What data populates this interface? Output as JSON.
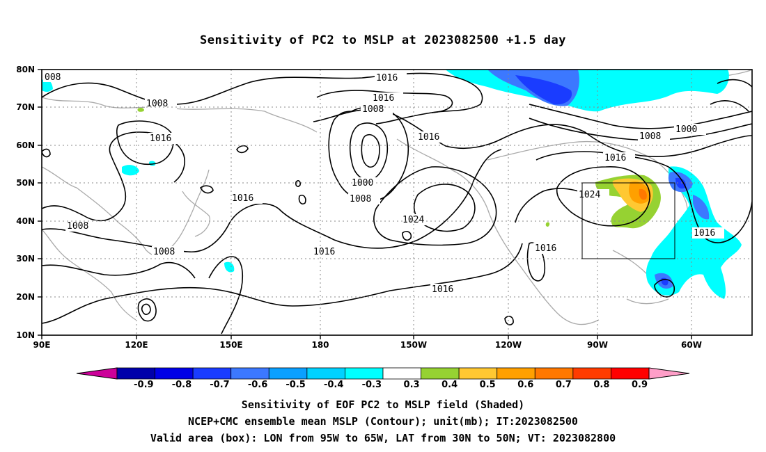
{
  "title": "Sensitivity of PC2 to MSLP at 2023082500 +1.5 day",
  "lat_ticks": [
    "80N",
    "70N",
    "60N",
    "50N",
    "40N",
    "30N",
    "20N",
    "10N"
  ],
  "lon_ticks": [
    "90E",
    "120E",
    "150E",
    "180",
    "150W",
    "120W",
    "90W",
    "60W"
  ],
  "contour_labels": [
    "008",
    "1008",
    "1016",
    "1016",
    "1016",
    "1008",
    "1016",
    "1000",
    "1008",
    "1024",
    "1016",
    "1016",
    "1008",
    "1000",
    "1008",
    "1016",
    "1024",
    "1016",
    "1008",
    "1016",
    "1016"
  ],
  "colorbar": {
    "labels": [
      "-0.9",
      "-0.8",
      "-0.7",
      "-0.6",
      "-0.5",
      "-0.4",
      "-0.3",
      "0.3",
      "0.4",
      "0.5",
      "0.6",
      "0.7",
      "0.8",
      "0.9"
    ],
    "colors": [
      "#cc0099",
      "#0000aa",
      "#0000e6",
      "#1a3cff",
      "#3c78ff",
      "#0aa0ff",
      "#00d2ff",
      "#00ffff",
      "#ffffff",
      "#96d232",
      "#ffc832",
      "#ffa000",
      "#ff7800",
      "#ff3c00",
      "#ff0000",
      "#ff9ec8"
    ]
  },
  "shading_colors": {
    "neg_light": "#00ffff",
    "neg_mid": "#00d2ff",
    "neg_dark": "#3c78ff",
    "neg_darkest": "#1a3cff",
    "pos_light": "#96d232",
    "pos_mid": "#ffc832",
    "pos_dark": "#ffa000",
    "pos_darkest": "#ff7800"
  },
  "captions": [
    "Sensitivity of EOF PC2 to MSLP field (Shaded)",
    "NCEP+CMC ensemble mean MSLP (Contour); unit(mb); IT:2023082500",
    "Valid area (box): LON from 95W to 65W, LAT from 30N to 50N; VT: 2023082800"
  ]
}
